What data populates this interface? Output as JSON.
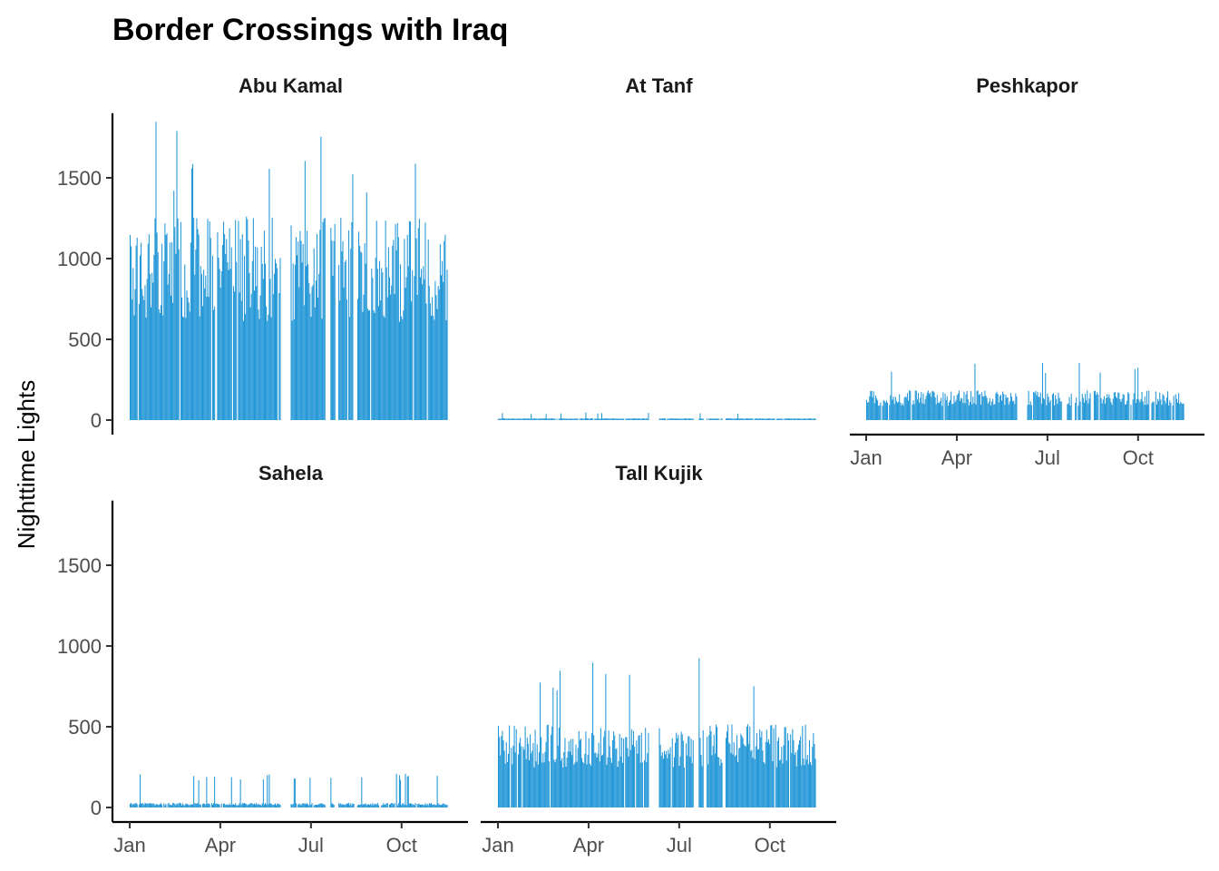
{
  "chart_data": {
    "type": "bar",
    "title": "Border Crossings with Iraq",
    "ylabel": "Nighttime Lights",
    "xlabel": "",
    "ylim": [
      0,
      1900
    ],
    "yticks": [
      0,
      500,
      1000,
      1500
    ],
    "xticks": [
      "Jan",
      "Apr",
      "Jul",
      "Oct"
    ],
    "color": "#2196D6",
    "grid": false,
    "panels": [
      {
        "name": "Abu Kamal",
        "row": 0,
        "col": 0,
        "approx_daily_level": 1100,
        "approx_daily_max": 1850,
        "gap_months": [
          "Jun",
          "Jul"
        ]
      },
      {
        "name": "At Tanf",
        "row": 0,
        "col": 1,
        "approx_daily_level": 10,
        "approx_daily_max": 50,
        "gap_months": [
          "Jun",
          "Jul"
        ]
      },
      {
        "name": "Peshkapor",
        "row": 0,
        "col": 2,
        "approx_daily_level": 160,
        "approx_daily_max": 380,
        "gap_months": [
          "Jun",
          "Jul"
        ]
      },
      {
        "name": "Sahela",
        "row": 1,
        "col": 0,
        "approx_daily_level": 25,
        "approx_daily_max": 210,
        "gap_months": [
          "Jun",
          "Jul"
        ]
      },
      {
        "name": "Tall Kujik",
        "row": 1,
        "col": 1,
        "approx_daily_level": 450,
        "approx_daily_max": 940,
        "gap_months": [
          "Jun",
          "Jul"
        ]
      }
    ]
  }
}
